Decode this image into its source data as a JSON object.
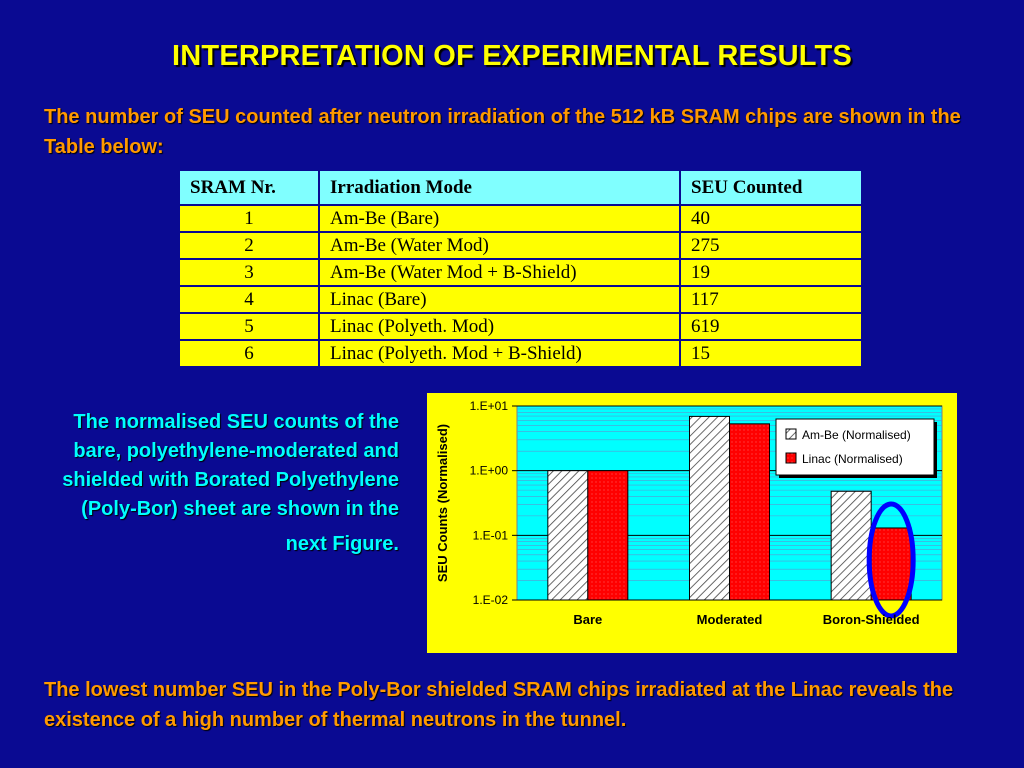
{
  "slide": {
    "title": "INTERPRETATION OF EXPERIMENTAL RESULTS",
    "intro": "The number of SEU counted after neutron irradiation of the 512 kB SRAM chips are shown in the Table below:",
    "side_text_1": "The normalised SEU counts of the bare, polyethylene-moderated and shielded with Borated Polyethylene (Poly-Bor) sheet are shown in the",
    "side_text_2": "next Figure.",
    "conclusion": "The lowest number SEU in the Poly-Bor shielded SRAM chips irradiated at the Linac reveals the existence of a high number of thermal neutrons in the tunnel."
  },
  "table": {
    "headers": [
      "SRAM Nr.",
      "Irradiation Mode",
      "SEU Counted"
    ],
    "rows": [
      [
        "1",
        "Am-Be (Bare)",
        "40"
      ],
      [
        "2",
        "Am-Be (Water Mod)",
        "275"
      ],
      [
        "3",
        "Am-Be (Water Mod + B-Shield)",
        "19"
      ],
      [
        "4",
        "Linac (Bare)",
        "117"
      ],
      [
        "5",
        "Linac (Polyeth. Mod)",
        "619"
      ],
      [
        "6",
        "Linac (Polyeth. Mod + B-Shield)",
        "15"
      ]
    ]
  },
  "chart_data": {
    "type": "bar",
    "title": "",
    "xlabel": "",
    "ylabel": "SEU Counts (Normalised)",
    "y_scale": "log",
    "ylim": [
      0.01,
      10
    ],
    "y_ticks": [
      "1.E-02",
      "1.E-01",
      "1.E+00",
      "1.E+01"
    ],
    "categories": [
      "Bare",
      "Moderated",
      "Boron-Shielded"
    ],
    "series": [
      {
        "name": "Am-Be (Normalised)",
        "values": [
          1.0,
          6.9,
          0.48
        ],
        "fill": "hatch"
      },
      {
        "name": "Linac (Normalised)",
        "values": [
          1.0,
          5.3,
          0.13
        ],
        "fill": "red-dots"
      }
    ],
    "grid": true,
    "legend_position": "top-right",
    "highlight": {
      "category": "Boron-Shielded",
      "series": "Linac (Normalised)",
      "color": "#0000ff"
    }
  },
  "colors": {
    "background": "#0a0a92",
    "title": "#ffff00",
    "text_orange": "#ff9900",
    "text_cyan": "#00ffff",
    "table_header": "#80ffff",
    "table_cell": "#ffff00",
    "chart_panel": "#ffff00",
    "plot_area": "#00ffff",
    "linac_bar": "#ff0000"
  }
}
